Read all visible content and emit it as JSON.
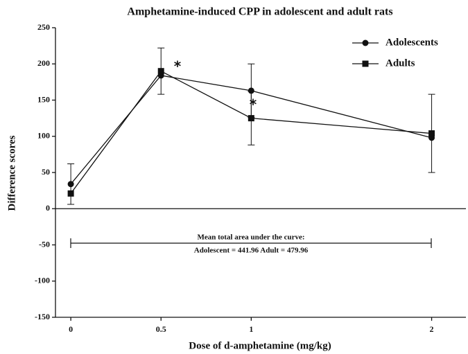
{
  "chart_data": {
    "type": "line",
    "title": "Amphetamine-induced CPP in adolescent and adult rats",
    "x_label": "Dose of d-amphetamine (mg/kg)",
    "y_label": "Difference scores",
    "x": [
      0,
      0.5,
      1,
      2
    ],
    "series": [
      {
        "name": "Adolescents",
        "color": "#111111",
        "marker": "circle",
        "values": [
          34,
          184,
          163,
          98
        ],
        "errors": [
          28,
          null,
          37,
          null
        ]
      },
      {
        "name": "Adults",
        "color": "#111111",
        "marker": "square",
        "values": [
          21,
          190,
          125,
          104
        ],
        "errors": [
          null,
          32,
          37,
          54
        ]
      }
    ],
    "xlim": [
      -0.085,
      2.19
    ],
    "xticks": [
      0,
      0.5,
      1,
      2
    ],
    "ylim": [
      -150,
      250
    ],
    "yticks": [
      -150,
      -100,
      -50,
      0,
      50,
      100,
      150,
      200,
      250
    ],
    "legend": "upper right",
    "annotations": [
      "*",
      "*",
      "Mean total area under the curve:",
      "Adolescent = 441.96    Adult = 479.96"
    ]
  }
}
